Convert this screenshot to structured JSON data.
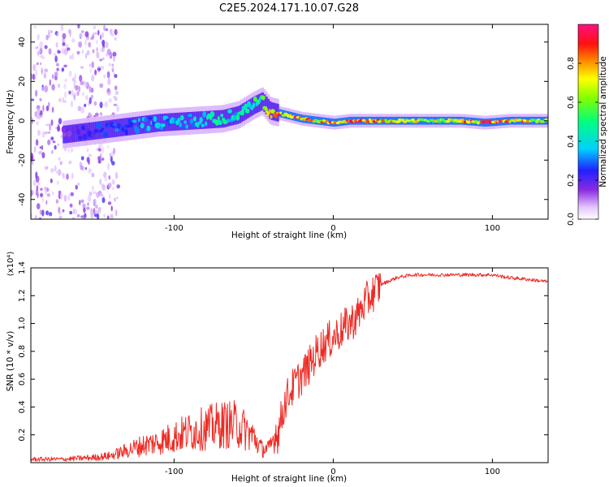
{
  "title": "C2E5.2024.171.10.07.G28",
  "colors": {
    "snr_line": "#ee2a24",
    "axis": "#000000"
  },
  "chart_data": [
    {
      "type": "heatmap",
      "xlabel": "Height of straight line (km)",
      "ylabel": "Frequency (Hz)",
      "xlim": [
        -190,
        135
      ],
      "ylim": [
        -50,
        49
      ],
      "xticks": [
        -100,
        0,
        100
      ],
      "yticks": [
        -40,
        -20,
        0,
        20,
        40
      ],
      "colormap": "rainbow (white - violet - blue - cyan - green - yellow - orange - red - magenta)",
      "colorbar": {
        "label": "Normalized spectral amplitude",
        "range": [
          0,
          1
        ],
        "ticks": [
          "0.0",
          "0.2",
          "0.4",
          "0.6",
          "0.8"
        ]
      },
      "ridge": {
        "description": "frequency of peak spectral amplitude vs height",
        "x": [
          -170,
          -150,
          -130,
          -110,
          -90,
          -70,
          -60,
          -50,
          -45,
          -40,
          -35,
          -30,
          -20,
          -10,
          0,
          10,
          20,
          40,
          60,
          80,
          95,
          110,
          130
        ],
        "y": [
          -7,
          -5,
          -3,
          -1,
          0,
          1,
          3,
          8,
          10,
          5,
          4,
          3,
          1,
          0,
          -1,
          0,
          0,
          0,
          0,
          0,
          -1,
          0,
          0
        ],
        "amplitude": [
          0.15,
          0.25,
          0.3,
          0.35,
          0.4,
          0.45,
          0.45,
          0.5,
          0.5,
          0.7,
          0.8,
          0.85,
          0.9,
          0.7,
          0.95,
          0.9,
          0.85,
          0.75,
          0.7,
          0.75,
          0.95,
          0.85,
          0.7
        ]
      }
    },
    {
      "type": "line",
      "xlabel": "Height of straight line (km)",
      "ylabel": "SNR (10 * v/v)",
      "y_multiplier": "(x10⁴)",
      "xlim": [
        -190,
        135
      ],
      "ylim": [
        0,
        1.4
      ],
      "xticks": [
        -100,
        0,
        100
      ],
      "yticks": [
        "0.2",
        "0.4",
        "0.6",
        "0.8",
        "1.0",
        "1.2",
        "1.4"
      ],
      "series": [
        {
          "x": [
            -190,
            -170,
            -150,
            -140,
            -130,
            -120,
            -110,
            -100,
            -90,
            -80,
            -70,
            -60,
            -50,
            -45,
            -40,
            -35,
            -30,
            -25,
            -20,
            -15,
            -10,
            -5,
            0,
            5,
            10,
            15,
            20,
            25,
            30,
            40,
            50,
            60,
            70,
            80,
            90,
            100,
            110,
            120,
            135
          ],
          "y": [
            0.02,
            0.02,
            0.03,
            0.04,
            0.07,
            0.1,
            0.12,
            0.15,
            0.18,
            0.2,
            0.22,
            0.22,
            0.15,
            0.08,
            0.08,
            0.2,
            0.45,
            0.55,
            0.62,
            0.7,
            0.8,
            0.86,
            0.9,
            0.95,
            1.0,
            1.05,
            1.15,
            1.22,
            1.28,
            1.33,
            1.35,
            1.35,
            1.35,
            1.35,
            1.35,
            1.35,
            1.33,
            1.32,
            1.3
          ]
        }
      ]
    }
  ]
}
